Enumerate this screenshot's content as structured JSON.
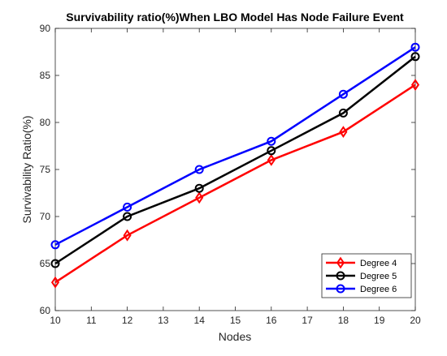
{
  "chart_data": {
    "type": "line",
    "title": "Survivability ratio(%)When LBO Model Has Node Failure Event",
    "xlabel": "Nodes",
    "ylabel": "Survivability Ratio(%)",
    "xlim": [
      10,
      20
    ],
    "ylim": [
      60,
      90
    ],
    "xticks": [
      10,
      11,
      12,
      13,
      14,
      15,
      16,
      17,
      18,
      19,
      20
    ],
    "yticks": [
      60,
      65,
      70,
      75,
      80,
      85,
      90
    ],
    "grid": false,
    "legend_position": "bottom-right",
    "x": [
      10,
      12,
      14,
      16,
      18,
      20
    ],
    "series": [
      {
        "name": "Degree 4",
        "color": "#ff0000",
        "marker": "diamond",
        "values": [
          63,
          68,
          72,
          76,
          79,
          84
        ]
      },
      {
        "name": "Degree 5",
        "color": "#000000",
        "marker": "circle",
        "values": [
          65,
          70,
          73,
          77,
          81,
          87
        ]
      },
      {
        "name": "Degree 6",
        "color": "#0000ff",
        "marker": "circle",
        "values": [
          67,
          71,
          75,
          78,
          83,
          88
        ]
      }
    ]
  }
}
